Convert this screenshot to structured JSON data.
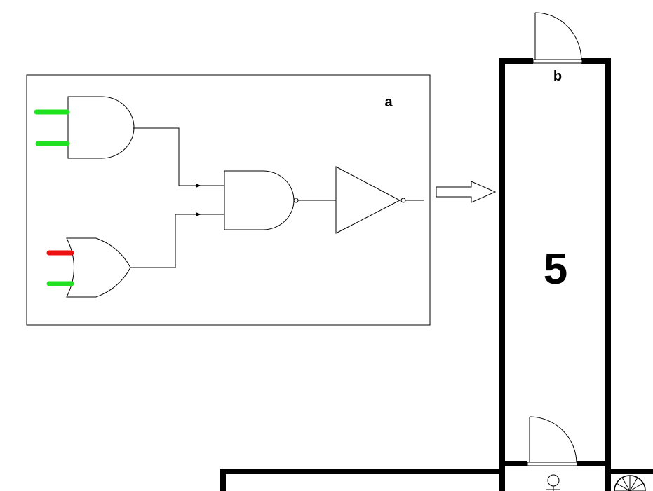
{
  "puzzle": {
    "panel_label": "a",
    "inputs": [
      {
        "gate": "and",
        "index": 1,
        "state": "on",
        "color": "#22e022"
      },
      {
        "gate": "and",
        "index": 2,
        "state": "on",
        "color": "#22e022"
      },
      {
        "gate": "or",
        "index": 1,
        "state": "off",
        "color": "#ee1111"
      },
      {
        "gate": "or",
        "index": 2,
        "state": "on",
        "color": "#22e022"
      }
    ],
    "gates": [
      "and-gate",
      "or-gate",
      "nand-gate",
      "not-gate"
    ]
  },
  "map": {
    "room_number": "5",
    "wall_marker_a": "a",
    "door_marker_b": "b"
  },
  "colors": {
    "wire": "#000000",
    "wall": "#000000",
    "on": "#22e022",
    "off": "#ee1111"
  }
}
